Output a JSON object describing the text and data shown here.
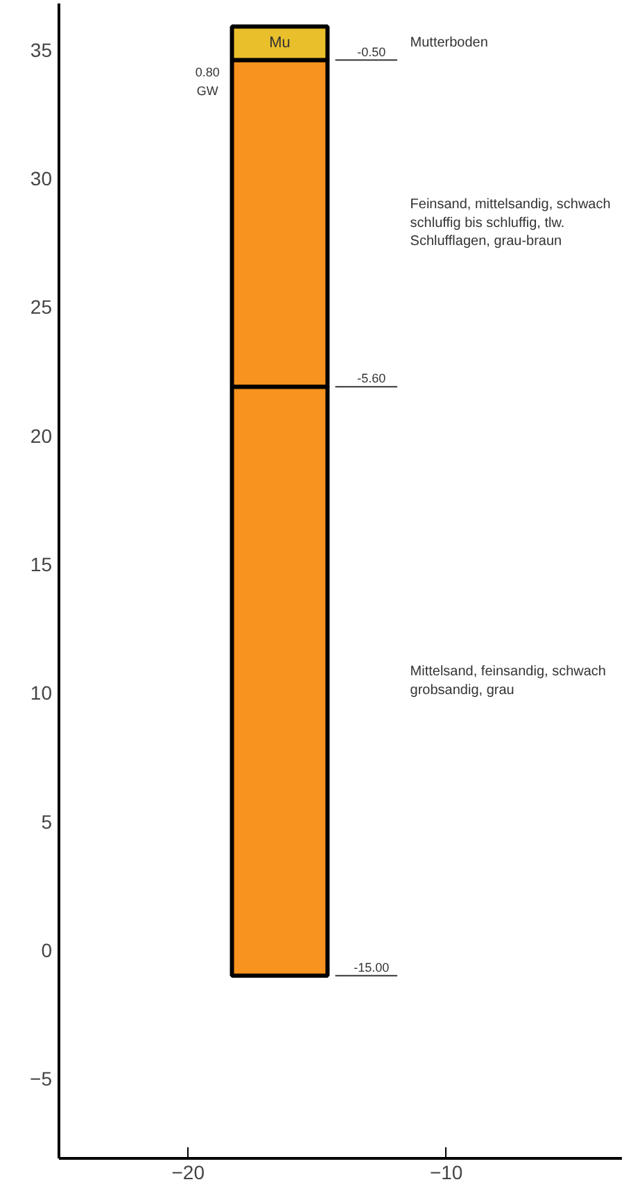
{
  "chart_data": {
    "type": "bar",
    "x": [
      -16.45
    ],
    "series": [
      {
        "name": "Mittelsand, feinsandig, schwach\ngrobsandig, grau",
        "color": "#f7931e",
        "base": [
          -1.0
        ],
        "values": [
          22.9
        ]
      },
      {
        "name": "Feinsand, mittelsandig, schwach\nschluffig bis schluffig, tlw.\nSchlufflagen, grau-braun",
        "color": "#f7931e",
        "base": [
          21.9
        ],
        "values": [
          12.7
        ]
      },
      {
        "name": "Mutterboden",
        "color": "#e9bf2c",
        "base": [
          34.6
        ],
        "values": [
          1.3
        ]
      }
    ],
    "annotations": [
      "Mu",
      "0.80",
      "GW",
      "-0.50",
      "-5.60",
      "-15.00"
    ],
    "xlim": [
      -25.0,
      -3.2
    ],
    "ylim": [
      -8.1,
      36.8
    ],
    "xticks": [
      -20,
      -10
    ],
    "yticks": [
      -5,
      0,
      5,
      10,
      15,
      20,
      25,
      30,
      35
    ],
    "grid": false
  }
}
